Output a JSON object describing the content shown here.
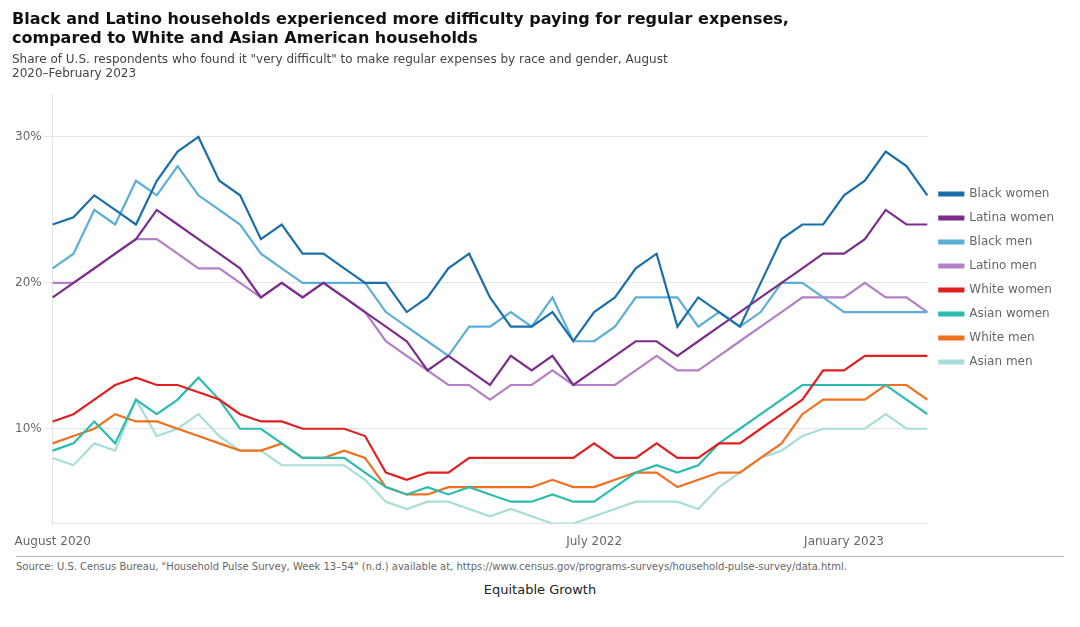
{
  "chart_data": {
    "type": "line",
    "title": [
      "Black and Latino households experienced more difficulty paying for regular expenses,",
      "compared to White and Asian American households"
    ],
    "subtitle": "Share of U.S. respondents who found it \"very difficult\" to make regular expenses by race and gender, August\n2020–February 2023",
    "annotations": [
      "Source: U.S. Census Bureau, \"Household Pulse Survey, Week 13–54\" (n.d.) available at, https://www.census.gov/programs-surveys/household-pulse-survey/data.html.",
      "Equitable Growth"
    ],
    "categories": [
      "August 2020",
      null,
      null,
      null,
      null,
      null,
      null,
      null,
      null,
      null,
      null,
      null,
      null,
      null,
      null,
      null,
      null,
      null,
      null,
      null,
      null,
      null,
      null,
      null,
      null,
      null,
      "July 2022",
      null,
      null,
      null,
      null,
      null,
      null,
      null,
      null,
      null,
      null,
      null,
      "January 2023",
      null,
      null,
      null,
      null
    ],
    "series": [
      {
        "name": "Black women",
        "color": "#1a6fa8",
        "values": [
          24,
          24.5,
          26,
          25,
          24,
          27,
          29,
          30,
          27,
          26,
          23,
          24,
          22,
          22,
          21,
          20,
          20,
          18,
          19,
          21,
          22,
          19,
          17,
          17,
          18,
          16,
          18,
          19,
          21,
          22,
          17,
          19,
          18,
          17,
          20,
          23,
          24,
          24,
          26,
          27,
          29,
          28,
          26
        ]
      },
      {
        "name": "Latina women",
        "color": "#7b2d8b",
        "values": [
          19,
          20,
          21,
          22,
          23,
          25,
          24,
          23,
          22,
          21,
          19,
          20,
          19,
          20,
          19,
          18,
          17,
          16,
          14,
          15,
          14,
          13,
          15,
          14,
          15,
          13,
          14,
          15,
          16,
          16,
          15,
          16,
          17,
          18,
          19,
          20,
          21,
          22,
          22,
          23,
          25,
          24,
          24
        ]
      },
      {
        "name": "Black men",
        "color": "#5bafd6",
        "values": [
          21,
          22,
          25,
          24,
          27,
          26,
          28,
          26,
          25,
          24,
          22,
          21,
          20,
          20,
          20,
          20,
          18,
          17,
          16,
          15,
          17,
          17,
          18,
          17,
          19,
          16,
          16,
          17,
          19,
          19,
          19,
          17,
          18,
          17,
          18,
          20,
          20,
          19,
          18,
          18,
          18,
          18,
          18
        ]
      },
      {
        "name": "Latino men",
        "color": "#b57fc8",
        "values": [
          20,
          20,
          21,
          22,
          23,
          23,
          22,
          21,
          21,
          20,
          19,
          20,
          19,
          20,
          19,
          18,
          16,
          15,
          14,
          13,
          13,
          12,
          13,
          13,
          14,
          13,
          13,
          13,
          14,
          15,
          14,
          14,
          15,
          16,
          17,
          18,
          19,
          19,
          19,
          20,
          19,
          19,
          18
        ]
      },
      {
        "name": "White women",
        "color": "#e02020",
        "values": [
          10.5,
          11,
          12,
          13,
          13.5,
          13,
          13,
          12.5,
          12,
          11,
          10.5,
          10.5,
          10,
          10,
          10,
          9.5,
          7,
          6.5,
          7,
          7,
          8,
          8,
          8,
          8,
          8,
          8,
          9,
          8,
          8,
          9,
          8,
          8,
          9,
          9,
          10,
          11,
          12,
          14,
          14,
          15,
          15,
          15,
          15
        ]
      },
      {
        "name": "Asian women",
        "color": "#2abcb0",
        "values": [
          8.5,
          9,
          10.5,
          9,
          12,
          11,
          12,
          13.5,
          12,
          10,
          10,
          9,
          8,
          8,
          8,
          7,
          6,
          5.5,
          6,
          5.5,
          6,
          5.5,
          5,
          5,
          5.5,
          5,
          5,
          6,
          7,
          7.5,
          7,
          7.5,
          9,
          10,
          11,
          12,
          13,
          13,
          13,
          13,
          13,
          12,
          11
        ]
      },
      {
        "name": "White men",
        "color": "#f07020",
        "values": [
          9,
          9.5,
          10,
          11,
          10.5,
          10.5,
          10,
          9.5,
          9,
          8.5,
          8.5,
          9,
          8,
          8,
          8.5,
          8,
          6,
          5.5,
          5.5,
          6,
          6,
          6,
          6,
          6,
          6.5,
          6,
          6,
          6.5,
          7,
          7,
          6,
          6.5,
          7,
          7,
          8,
          9,
          11,
          12,
          12,
          12,
          13,
          13,
          12
        ]
      },
      {
        "name": "Asian men",
        "color": "#a8deda",
        "values": [
          8,
          7.5,
          9,
          8.5,
          12,
          9.5,
          10,
          11,
          9.5,
          8.5,
          8.5,
          7.5,
          7.5,
          7.5,
          7.5,
          6.5,
          5,
          4.5,
          5,
          5,
          4.5,
          4,
          4.5,
          4,
          3.5,
          3.5,
          4,
          4.5,
          5,
          5,
          5,
          4.5,
          6,
          7,
          8,
          8.5,
          9.5,
          10,
          10,
          10,
          11,
          10,
          10
        ]
      }
    ],
    "ylim": [
      3.5,
      33
    ],
    "yticks": [
      {
        "value": 10,
        "label": "10%"
      },
      {
        "value": 20,
        "label": "20%"
      },
      {
        "value": 30,
        "label": "30%"
      }
    ],
    "grid": true,
    "legend": "right"
  }
}
